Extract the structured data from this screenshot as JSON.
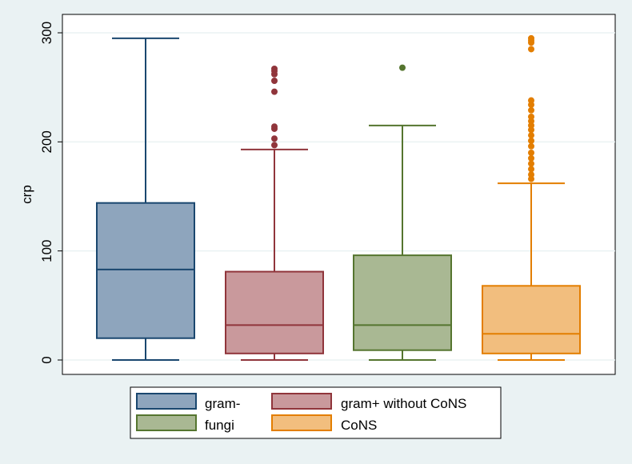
{
  "chart_data": {
    "type": "boxplot",
    "title": "",
    "xlabel": "",
    "ylabel": "crp",
    "ylim": [
      -10,
      310
    ],
    "yticks": [
      0,
      100,
      200,
      300
    ],
    "ytick_labels": [
      "0",
      "100",
      "200",
      "300"
    ],
    "grid": true,
    "legend_position": "bottom",
    "series": [
      {
        "name": "gram-",
        "fill": "#8ea5bd",
        "stroke": "#1a476f",
        "whisker_low": 0,
        "q1": 20,
        "median": 83,
        "q3": 144,
        "whisker_high": 295,
        "outliers": []
      },
      {
        "name": "gram+ without CoNS",
        "fill": "#c9999c",
        "stroke": "#90353b",
        "whisker_low": 0,
        "q1": 6,
        "median": 32,
        "q3": 81,
        "whisker_high": 193,
        "outliers": [
          197,
          203,
          212,
          214,
          246,
          256,
          262,
          265,
          267
        ]
      },
      {
        "name": "fungi",
        "fill": "#a9b893",
        "stroke": "#55752f",
        "whisker_low": 0,
        "q1": 9,
        "median": 32,
        "q3": 96,
        "whisker_high": 215,
        "outliers": [
          268
        ]
      },
      {
        "name": "CoNS",
        "fill": "#f2be7e",
        "stroke": "#e37e00",
        "whisker_low": 0,
        "q1": 6,
        "median": 24,
        "q3": 68,
        "whisker_high": 162,
        "outliers": [
          166,
          170,
          175,
          180,
          185,
          190,
          196,
          201,
          206,
          211,
          215,
          219,
          223,
          229,
          234,
          238,
          285,
          291,
          293,
          295
        ]
      }
    ]
  }
}
